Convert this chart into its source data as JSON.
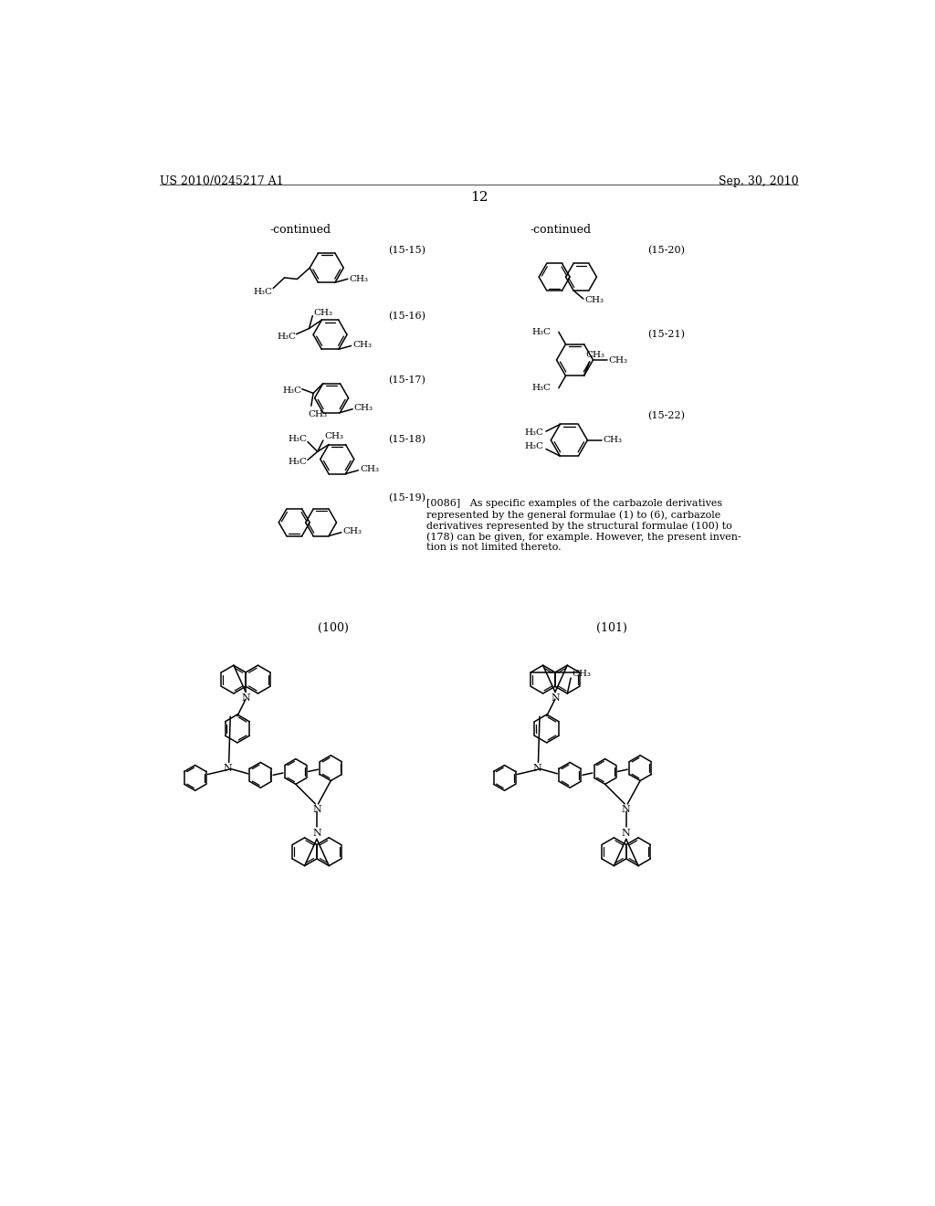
{
  "background_color": "#ffffff",
  "header_left": "US 2010/0245217 A1",
  "header_right": "Sep. 30, 2010",
  "page_number": "12",
  "continued_left": "-continued",
  "continued_right": "-continued",
  "label_1515": "(15-15)",
  "label_1516": "(15-16)",
  "label_1517": "(15-17)",
  "label_1518": "(15-18)",
  "label_1519": "(15-19)",
  "label_1520": "(15-20)",
  "label_1521": "(15-21)",
  "label_1522": "(15-22)",
  "label_100": "(100)",
  "label_101": "(101)",
  "para_lines": [
    "[0086]   As specific examples of the carbazole derivatives",
    "represented by the general formulae (1) to (6), carbazole",
    "derivatives represented by the structural formulae (100) to",
    "(178) can be given, for example. However, the present inven-",
    "tion is not limited thereto."
  ]
}
